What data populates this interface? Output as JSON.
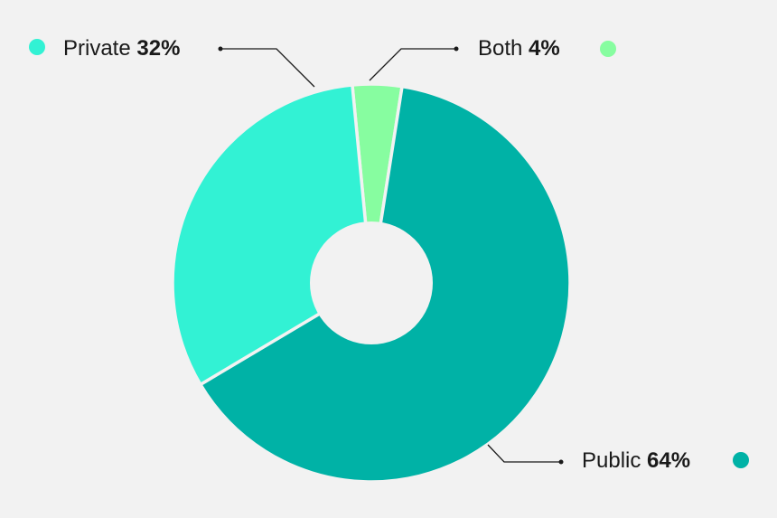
{
  "chart_data": {
    "type": "pie",
    "donut": true,
    "title": "",
    "slices": [
      {
        "label": "Public",
        "value": 64,
        "value_text": "64%",
        "color": "#00b2a6"
      },
      {
        "label": "Private",
        "value": 32,
        "value_text": "32%",
        "color": "#32f2d4"
      },
      {
        "label": "Both",
        "value": 4,
        "value_text": "4%",
        "color": "#87fda0"
      }
    ],
    "background_color": "#f2f2f2",
    "center_hole_color": "#f2f2f2"
  }
}
